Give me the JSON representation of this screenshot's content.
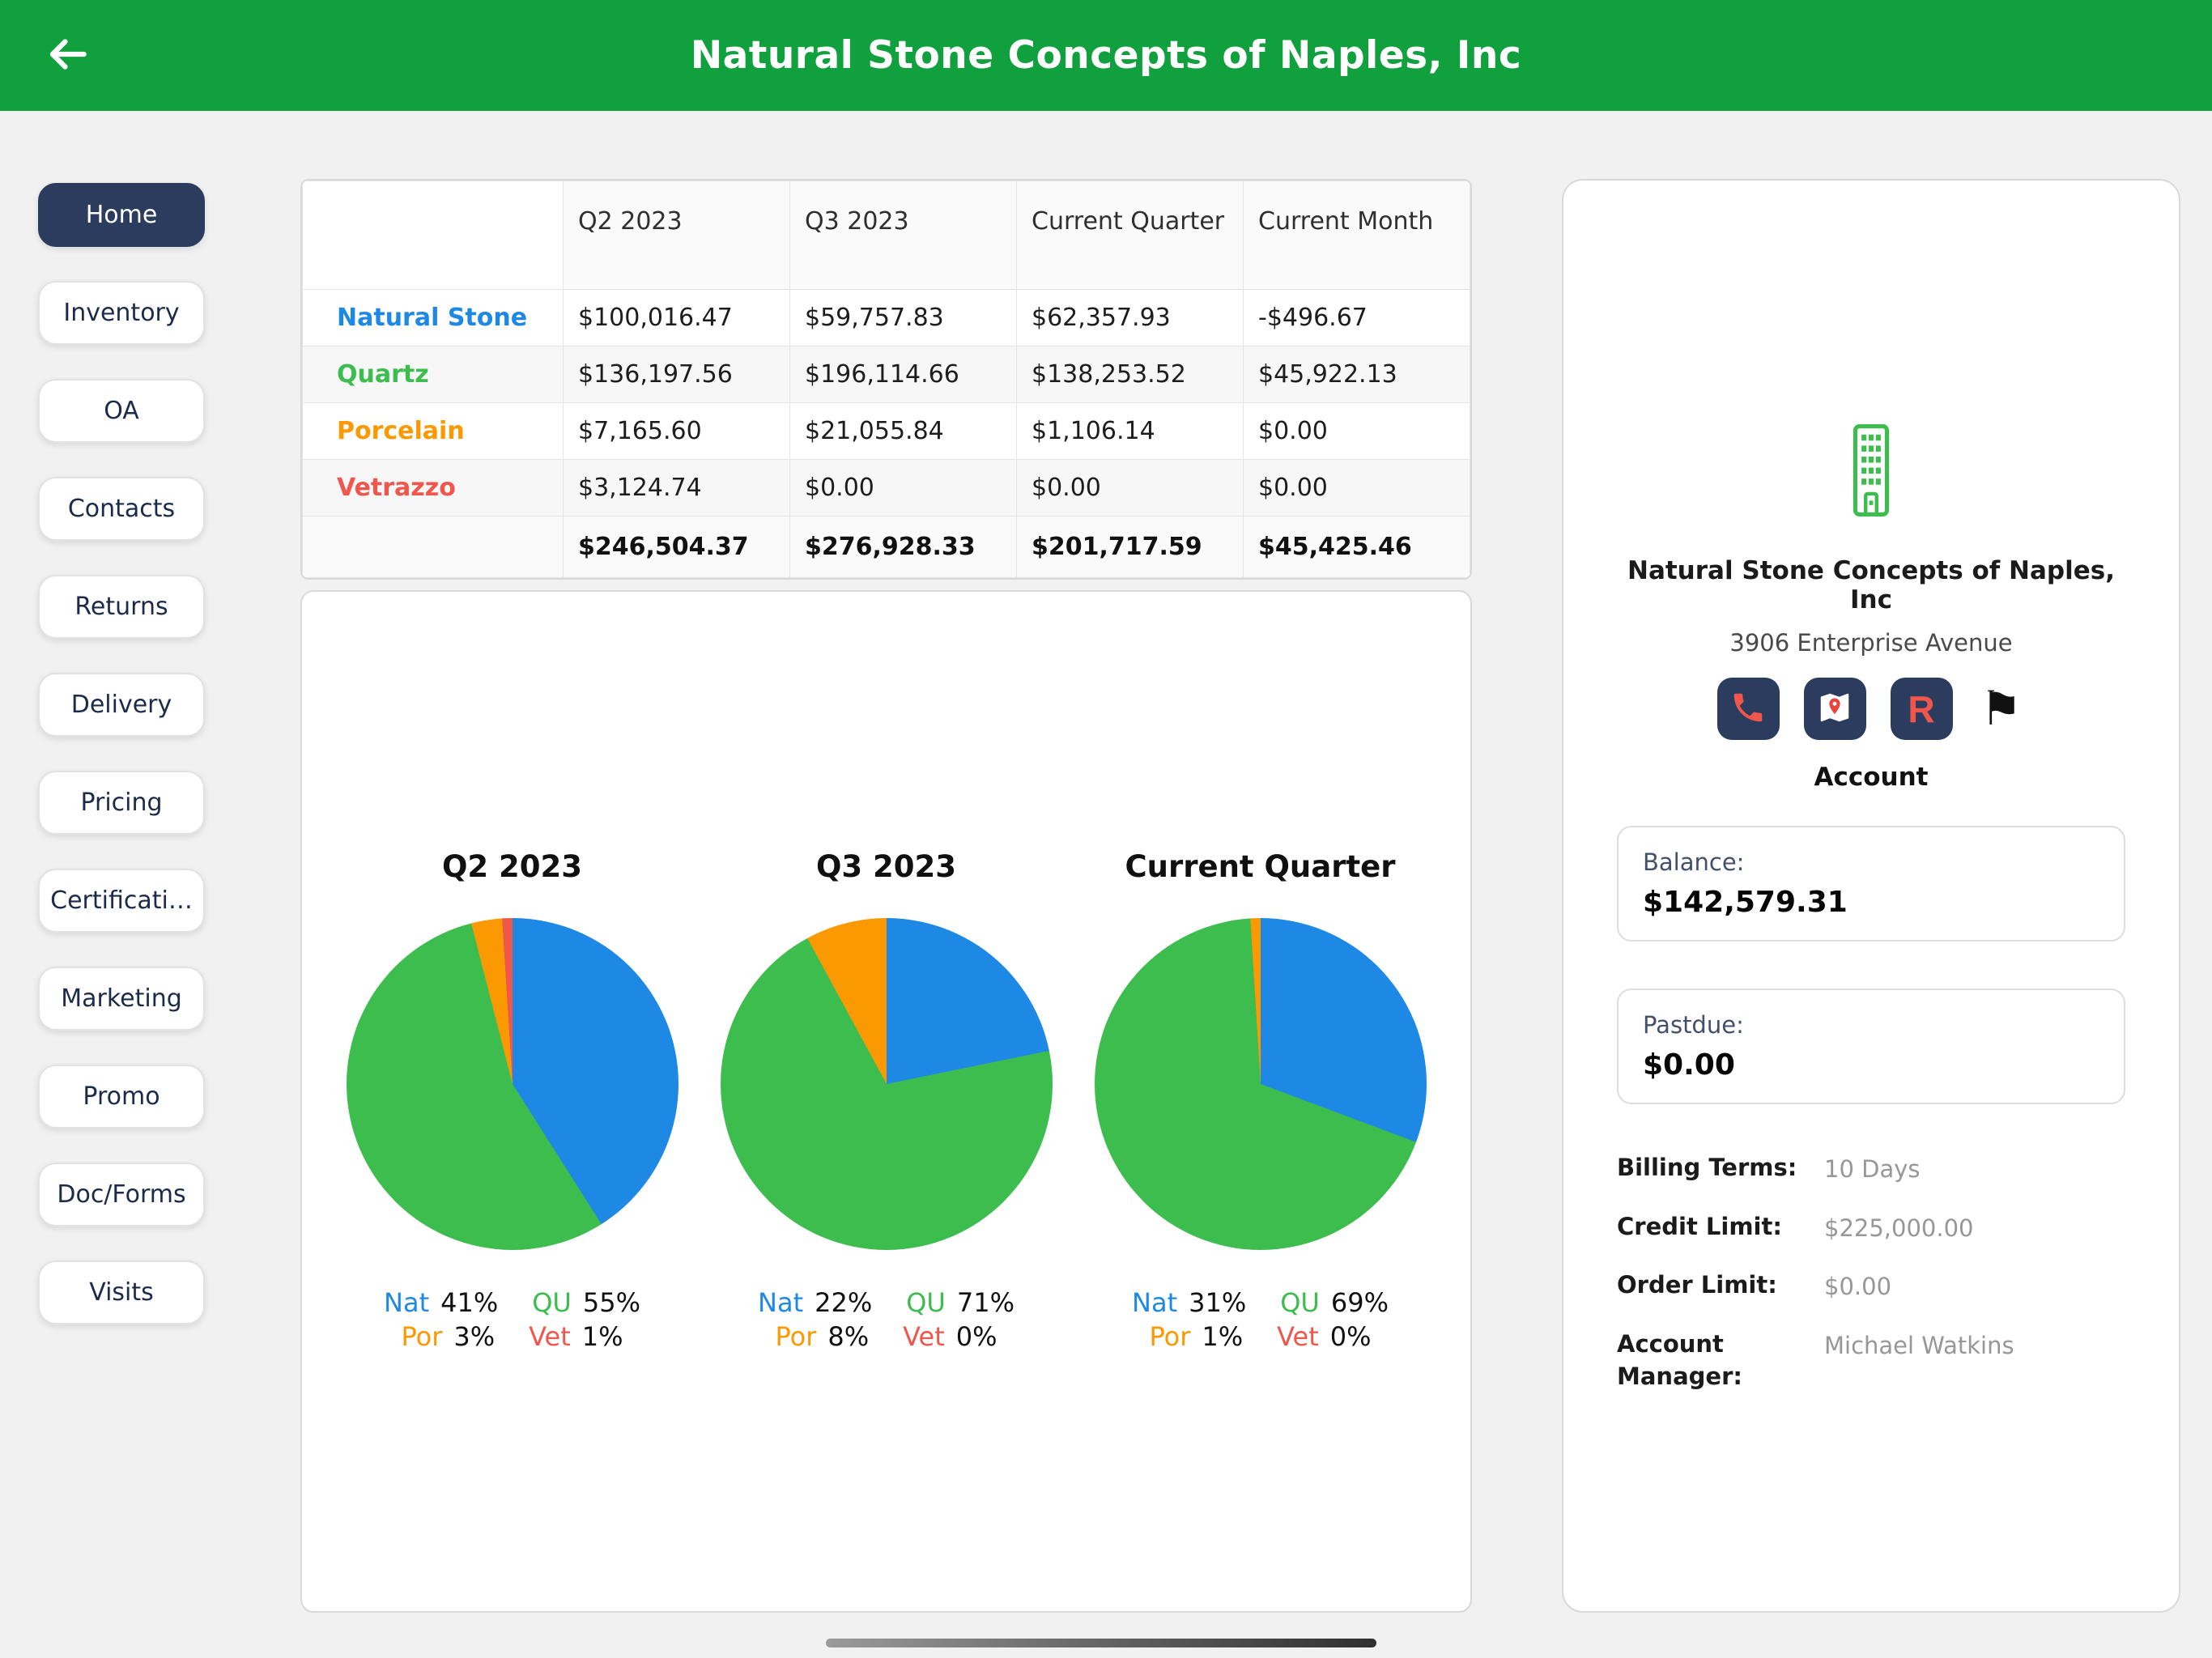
{
  "header": {
    "title": "Natural Stone Concepts of Naples, Inc"
  },
  "palette": {
    "header_green": "#10A03E",
    "navy": "#2C3C5E",
    "blue": "#1E88E5",
    "green": "#3EBD4F",
    "orange": "#FB9902",
    "red": "#F0564C"
  },
  "sidebar": {
    "items": [
      {
        "label": "Home",
        "active": true
      },
      {
        "label": "Inventory",
        "active": false
      },
      {
        "label": "OA",
        "active": false
      },
      {
        "label": "Contacts",
        "active": false
      },
      {
        "label": "Returns",
        "active": false
      },
      {
        "label": "Delivery",
        "active": false
      },
      {
        "label": "Pricing",
        "active": false
      },
      {
        "label": "Certificati…",
        "active": false
      },
      {
        "label": "Marketing",
        "active": false
      },
      {
        "label": "Promo",
        "active": false
      },
      {
        "label": "Doc/Forms",
        "active": false
      },
      {
        "label": "Visits",
        "active": false
      }
    ]
  },
  "sales_table": {
    "columns": [
      "Q2 2023",
      "Q3 2023",
      "Current Quarter",
      "Current Month"
    ],
    "rows": [
      {
        "label": "Natural Stone",
        "color": "#1E88E5",
        "values": [
          "$100,016.47",
          "$59,757.83",
          "$62,357.93",
          "-$496.67"
        ]
      },
      {
        "label": "Quartz",
        "color": "#3EBD4F",
        "values": [
          "$136,197.56",
          "$196,114.66",
          "$138,253.52",
          "$45,922.13"
        ]
      },
      {
        "label": "Porcelain",
        "color": "#FB9902",
        "values": [
          "$7,165.60",
          "$21,055.84",
          "$1,106.14",
          "$0.00"
        ]
      },
      {
        "label": "Vetrazzo",
        "color": "#F0564C",
        "values": [
          "$3,124.74",
          "$0.00",
          "$0.00",
          "$0.00"
        ]
      }
    ],
    "totals": [
      "$246,504.37",
      "$276,928.33",
      "$201,717.59",
      "$45,425.46"
    ]
  },
  "chart_data": [
    {
      "type": "pie",
      "title": "Q2 2023",
      "slices": [
        {
          "label": "Nat",
          "pct": 41,
          "display": "41%",
          "color": "#1E88E5"
        },
        {
          "label": "QU",
          "pct": 55,
          "display": "55%",
          "color": "#3EBD4F"
        },
        {
          "label": "Por",
          "pct": 3,
          "display": "3%",
          "color": "#FB9902"
        },
        {
          "label": "Vet",
          "pct": 1,
          "display": "1%",
          "color": "#F0564C"
        }
      ]
    },
    {
      "type": "pie",
      "title": "Q3 2023",
      "slices": [
        {
          "label": "Nat",
          "pct": 22,
          "display": "22%",
          "color": "#1E88E5"
        },
        {
          "label": "QU",
          "pct": 71,
          "display": "71%",
          "color": "#3EBD4F"
        },
        {
          "label": "Por",
          "pct": 8,
          "display": "8%",
          "color": "#FB9902"
        },
        {
          "label": "Vet",
          "pct": 0,
          "display": "0%",
          "color": "#F0564C"
        }
      ]
    },
    {
      "type": "pie",
      "title": "Current Quarter",
      "slices": [
        {
          "label": "Nat",
          "pct": 31,
          "display": "31%",
          "color": "#1E88E5"
        },
        {
          "label": "QU",
          "pct": 69,
          "display": "69%",
          "color": "#3EBD4F"
        },
        {
          "label": "Por",
          "pct": 1,
          "display": "1%",
          "color": "#FB9902"
        },
        {
          "label": "Vet",
          "pct": 0,
          "display": "0%",
          "color": "#F0564C"
        }
      ]
    }
  ],
  "account": {
    "company_name": "Natural Stone Concepts of Naples, Inc",
    "address": "3906 Enterprise Avenue",
    "icons": [
      "phone-icon",
      "map-icon",
      "r-icon",
      "flag-icon"
    ],
    "section_label": "Account",
    "balance_label": "Balance:",
    "balance_value": "$142,579.31",
    "pastdue_label": "Pastdue:",
    "pastdue_value": "$0.00",
    "details": [
      {
        "label": "Billing Terms:",
        "value": "10 Days"
      },
      {
        "label": "Credit Limit:",
        "value": "$225,000.00"
      },
      {
        "label": "Order Limit:",
        "value": "$0.00"
      },
      {
        "label": "Account Manager:",
        "value": "Michael Watkins"
      }
    ]
  }
}
